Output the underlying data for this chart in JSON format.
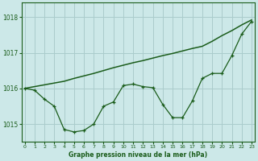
{
  "title": "Graphe pression niveau de la mer (hPa)",
  "bg_color": "#cce8e8",
  "grid_color": "#aacccc",
  "line_color": "#1a5c1a",
  "ylim": [
    1014.5,
    1018.4
  ],
  "xlim": [
    -0.3,
    23.3
  ],
  "yticks": [
    1015,
    1016,
    1017,
    1018
  ],
  "xticks": [
    0,
    1,
    2,
    3,
    4,
    5,
    6,
    7,
    8,
    9,
    10,
    11,
    12,
    13,
    14,
    15,
    16,
    17,
    18,
    19,
    20,
    21,
    22,
    23
  ],
  "series_detail_x": [
    0,
    1,
    2,
    3,
    4,
    5,
    6,
    7,
    8,
    9,
    10,
    11,
    12,
    13,
    14,
    15,
    16,
    17,
    18,
    19,
    20,
    21,
    22,
    23
  ],
  "series_detail_y": [
    1016.0,
    1015.95,
    1015.7,
    1015.5,
    1014.85,
    1014.78,
    1014.82,
    1015.0,
    1015.5,
    1015.62,
    1016.08,
    1016.12,
    1016.05,
    1016.02,
    1015.55,
    1015.18,
    1015.18,
    1015.65,
    1016.28,
    1016.42,
    1016.42,
    1016.92,
    1017.52,
    1017.88
  ],
  "series_smooth_x": [
    0,
    1,
    2,
    3,
    4,
    5,
    6,
    7,
    8,
    9,
    10,
    11,
    12,
    13,
    14,
    15,
    16,
    17,
    18,
    19,
    20,
    21,
    22,
    23
  ],
  "series_smooth_y": [
    1016.0,
    1016.05,
    1016.1,
    1016.15,
    1016.2,
    1016.28,
    1016.35,
    1016.42,
    1016.5,
    1016.58,
    1016.65,
    1016.72,
    1016.78,
    1016.85,
    1016.92,
    1016.98,
    1017.05,
    1017.12,
    1017.18,
    1017.32,
    1017.48,
    1017.62,
    1017.78,
    1017.92
  ]
}
